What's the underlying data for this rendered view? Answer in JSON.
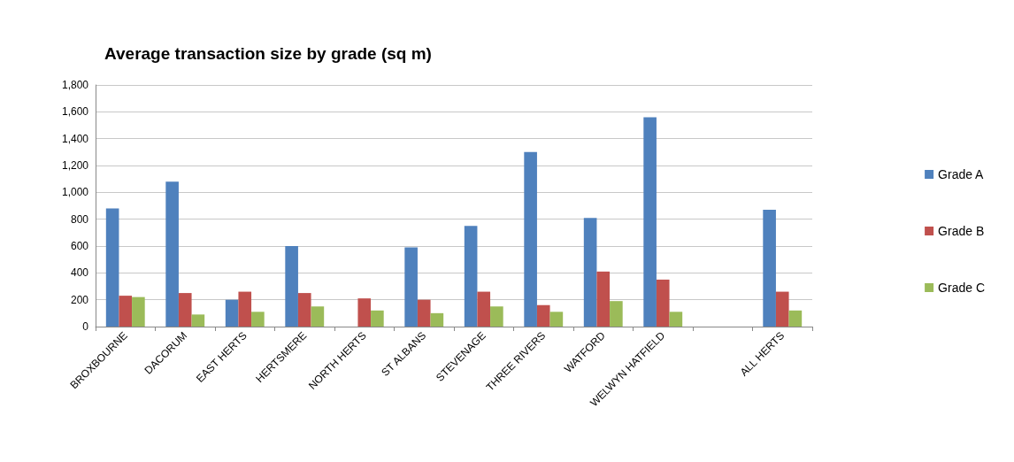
{
  "chart_data": {
    "type": "bar",
    "title": "Average transaction size by grade (sq m)",
    "categories": [
      "BROXBOURNE",
      "DACORUM",
      "EAST HERTS",
      "HERTSMERE",
      "NORTH HERTS",
      "ST ALBANS",
      "STEVENAGE",
      "THREE RIVERS",
      "WATFORD",
      "WELWYN HATFIELD",
      null,
      "ALL HERTS"
    ],
    "series": [
      {
        "name": "Grade A",
        "color": "#4f81bd",
        "values": [
          880,
          1080,
          200,
          600,
          null,
          590,
          750,
          1300,
          810,
          1560,
          null,
          870
        ]
      },
      {
        "name": "Grade B",
        "color": "#c0504d",
        "values": [
          230,
          250,
          260,
          250,
          210,
          200,
          260,
          160,
          410,
          350,
          null,
          260
        ]
      },
      {
        "name": "Grade C",
        "color": "#9bbb59",
        "values": [
          220,
          90,
          110,
          150,
          120,
          100,
          150,
          110,
          190,
          110,
          null,
          120
        ]
      }
    ],
    "ylim": [
      0,
      1800
    ],
    "yticks": [
      {
        "value": 0,
        "label": "0"
      },
      {
        "value": 200,
        "label": "200"
      },
      {
        "value": 400,
        "label": "400"
      },
      {
        "value": 600,
        "label": "600"
      },
      {
        "value": 800,
        "label": "800"
      },
      {
        "value": 1000,
        "label": "1,000"
      },
      {
        "value": 1200,
        "label": "1,200"
      },
      {
        "value": 1400,
        "label": "1,400"
      },
      {
        "value": 1600,
        "label": "1,600"
      },
      {
        "value": 1800,
        "label": "1,800"
      }
    ],
    "grid": "y",
    "legend": "right"
  }
}
